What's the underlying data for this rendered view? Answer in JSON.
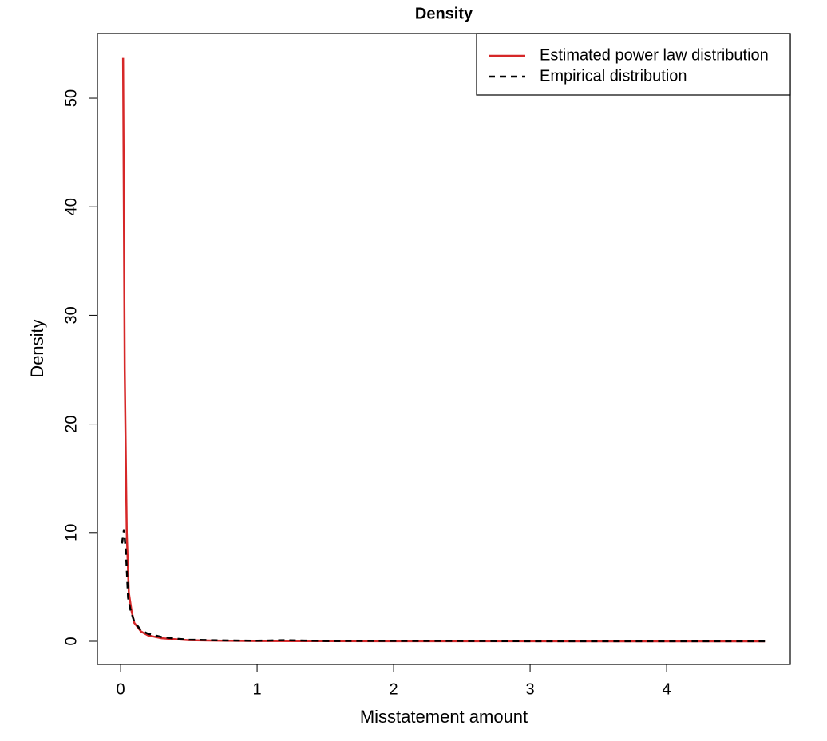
{
  "chart_data": {
    "type": "line",
    "title": "Density",
    "x_label": "Misstatement amount",
    "y_label": "Density",
    "xlim": [
      -0.17,
      4.906
    ],
    "ylim": [
      -2.13,
      55.95
    ],
    "xticks": [
      0,
      1,
      2,
      3,
      4
    ],
    "yticks": [
      0,
      10,
      20,
      30,
      40,
      50
    ],
    "legend": "top-right",
    "series": [
      {
        "name": "Estimated power law distribution",
        "color": "#d62728",
        "dash": "solid",
        "x": [
          0.018,
          0.03,
          0.045,
          0.06,
          0.08,
          0.1,
          0.15,
          0.2,
          0.3,
          0.5,
          0.75,
          1,
          1.5,
          2,
          3,
          4,
          4.72
        ],
        "values": [
          53.7,
          25,
          10,
          4.5,
          2.8,
          1.7,
          0.9,
          0.55,
          0.28,
          0.1,
          0.05,
          0.03,
          0.015,
          0.01,
          0.005,
          0.003,
          0.002
        ]
      },
      {
        "name": "Empirical distribution",
        "color": "#000000",
        "dash": "dashed",
        "x": [
          0.01,
          0.025,
          0.04,
          0.055,
          0.07,
          0.1,
          0.15,
          0.2,
          0.3,
          0.4,
          0.5,
          0.75,
          1,
          1.2,
          1.5,
          2.3,
          3,
          4.72
        ],
        "values": [
          9,
          10.3,
          8,
          4,
          3,
          1.8,
          1,
          0.7,
          0.4,
          0.25,
          0.15,
          0.08,
          0.05,
          0.1,
          0.03,
          0.04,
          0.01,
          0.01
        ]
      }
    ]
  }
}
